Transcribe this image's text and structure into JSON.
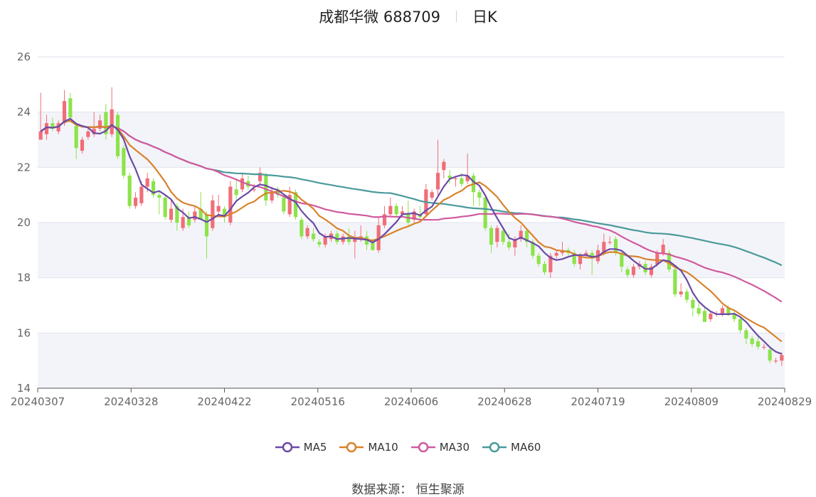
{
  "header": {
    "title": "成都华微 688709",
    "period": "日K"
  },
  "footer": {
    "source": "数据来源：  恒生聚源"
  },
  "chart_data": {
    "type": "candlestick",
    "ylim": [
      14,
      26
    ],
    "yticks": [
      14,
      16,
      18,
      20,
      22,
      24,
      26
    ],
    "xtick_labels": [
      "20240307",
      "20240328",
      "20240422",
      "20240516",
      "20240606",
      "20240628",
      "20240719",
      "20240809",
      "20240829"
    ],
    "colors": {
      "up": "#f06e78",
      "down": "#8ce34a",
      "band": "#f3f4f9",
      "grid": "#dfe3ef",
      "axis": "#666666"
    },
    "legend": [
      "MA5",
      "MA10",
      "MA30",
      "MA60"
    ],
    "series_colors": {
      "MA5": "#6a4aa6",
      "MA10": "#d9822b",
      "MA30": "#d05a9e",
      "MA60": "#4a9a9a"
    },
    "candles": [
      [
        23.0,
        23.3,
        24.7,
        23.0
      ],
      [
        23.2,
        23.6,
        23.9,
        23.0
      ],
      [
        23.6,
        23.4,
        23.8,
        23.3
      ],
      [
        23.3,
        23.6,
        23.7,
        23.2
      ],
      [
        23.6,
        24.4,
        24.8,
        23.5
      ],
      [
        24.5,
        23.8,
        24.7,
        23.7
      ],
      [
        23.5,
        22.7,
        23.6,
        22.3
      ],
      [
        22.6,
        23.0,
        23.1,
        22.5
      ],
      [
        23.1,
        23.3,
        23.4,
        23.0
      ],
      [
        23.2,
        23.4,
        24.0,
        23.1
      ],
      [
        23.4,
        23.7,
        23.9,
        23.3
      ],
      [
        24.0,
        23.2,
        24.3,
        23.0
      ],
      [
        23.2,
        24.1,
        24.9,
        23.1
      ],
      [
        23.9,
        22.4,
        24.0,
        22.3
      ],
      [
        22.7,
        21.7,
        22.8,
        21.6
      ],
      [
        21.7,
        20.6,
        21.8,
        20.5
      ],
      [
        20.6,
        20.9,
        21.1,
        20.5
      ],
      [
        20.7,
        21.3,
        21.5,
        20.6
      ],
      [
        21.3,
        21.6,
        21.8,
        21.1
      ],
      [
        21.5,
        21.0,
        21.6,
        20.9
      ],
      [
        21.0,
        20.9,
        21.1,
        20.3
      ],
      [
        20.9,
        20.2,
        21.0,
        20.1
      ],
      [
        20.1,
        20.5,
        20.8,
        20.0
      ],
      [
        20.6,
        20.0,
        20.7,
        19.7
      ],
      [
        19.8,
        20.2,
        20.5,
        19.7
      ],
      [
        20.2,
        19.9,
        20.4,
        19.8
      ],
      [
        20.1,
        20.4,
        20.6,
        20.0
      ],
      [
        20.5,
        20.1,
        21.1,
        20.1
      ],
      [
        20.3,
        19.5,
        20.4,
        18.7
      ],
      [
        19.8,
        20.8,
        21.0,
        19.7
      ],
      [
        20.4,
        20.6,
        21.0,
        20.2
      ],
      [
        20.5,
        20.2,
        20.6,
        20.0
      ],
      [
        20.0,
        21.3,
        21.5,
        19.9
      ],
      [
        21.2,
        21.0,
        21.6,
        20.8
      ],
      [
        21.2,
        21.6,
        21.8,
        21.1
      ],
      [
        21.5,
        21.3,
        21.7,
        21.2
      ],
      [
        21.2,
        21.2,
        21.4,
        21.1
      ],
      [
        21.5,
        21.8,
        22.0,
        21.4
      ],
      [
        21.7,
        20.8,
        21.8,
        20.6
      ],
      [
        20.8,
        21.1,
        21.3,
        20.7
      ],
      [
        21.2,
        21.0,
        21.3,
        20.9
      ],
      [
        20.9,
        20.4,
        21.0,
        20.3
      ],
      [
        20.3,
        21.0,
        21.3,
        20.2
      ],
      [
        21.1,
        20.2,
        21.2,
        20.1
      ],
      [
        20.1,
        19.5,
        20.2,
        19.4
      ],
      [
        19.5,
        19.8,
        19.9,
        19.4
      ],
      [
        19.6,
        19.4,
        19.8,
        19.3
      ],
      [
        19.3,
        19.2,
        19.4,
        19.1
      ],
      [
        19.2,
        19.5,
        19.6,
        19.1
      ],
      [
        19.4,
        19.6,
        19.7,
        19.3
      ],
      [
        19.6,
        19.3,
        19.7,
        19.2
      ],
      [
        19.3,
        19.5,
        19.6,
        19.2
      ],
      [
        19.5,
        19.3,
        19.8,
        19.2
      ],
      [
        19.3,
        19.4,
        19.7,
        18.7
      ],
      [
        19.4,
        19.5,
        19.9,
        19.3
      ],
      [
        19.5,
        19.2,
        19.7,
        19.0
      ],
      [
        19.3,
        19.0,
        19.4,
        19.0
      ],
      [
        19.0,
        19.9,
        20.2,
        18.9
      ],
      [
        19.9,
        20.3,
        20.6,
        19.8
      ],
      [
        20.3,
        20.6,
        20.9,
        20.2
      ],
      [
        20.6,
        20.3,
        20.7,
        20.2
      ],
      [
        20.3,
        20.4,
        20.6,
        20.2
      ],
      [
        20.3,
        20.0,
        20.8,
        19.9
      ],
      [
        20.1,
        20.4,
        20.5,
        20.0
      ],
      [
        20.3,
        20.2,
        20.6,
        20.1
      ],
      [
        20.3,
        21.2,
        21.4,
        20.2
      ],
      [
        20.9,
        21.1,
        21.2,
        20.8
      ],
      [
        21.2,
        21.8,
        23.0,
        20.9
      ],
      [
        21.9,
        22.2,
        22.3,
        21.6
      ],
      [
        21.7,
        21.6,
        21.9,
        21.4
      ],
      [
        21.6,
        21.6,
        21.7,
        21.3
      ],
      [
        21.6,
        21.4,
        21.8,
        21.3
      ],
      [
        21.5,
        21.7,
        22.5,
        21.4
      ],
      [
        21.7,
        21.1,
        21.8,
        20.6
      ],
      [
        21.1,
        20.9,
        21.2,
        20.6
      ],
      [
        20.9,
        19.8,
        21.0,
        19.7
      ],
      [
        19.8,
        19.2,
        19.9,
        18.9
      ],
      [
        19.3,
        19.8,
        19.9,
        19.1
      ],
      [
        19.7,
        19.3,
        19.8,
        19.2
      ],
      [
        19.3,
        19.1,
        19.6,
        19.0
      ],
      [
        19.1,
        19.4,
        19.5,
        18.8
      ],
      [
        19.4,
        19.7,
        19.9,
        19.3
      ],
      [
        19.7,
        19.3,
        19.8,
        19.1
      ],
      [
        19.3,
        18.8,
        19.4,
        18.7
      ],
      [
        18.8,
        18.5,
        18.9,
        18.4
      ],
      [
        18.5,
        18.2,
        18.6,
        18.1
      ],
      [
        18.2,
        18.8,
        18.9,
        18.0
      ],
      [
        18.8,
        18.9,
        19.0,
        18.7
      ],
      [
        18.9,
        19.0,
        19.3,
        18.8
      ],
      [
        19.0,
        18.9,
        19.1,
        18.8
      ],
      [
        18.9,
        18.5,
        19.0,
        18.4
      ],
      [
        18.5,
        18.8,
        18.9,
        18.3
      ],
      [
        18.8,
        18.9,
        19.0,
        18.7
      ],
      [
        18.9,
        18.7,
        19.0,
        18.1
      ],
      [
        18.6,
        19.0,
        19.2,
        18.5
      ],
      [
        18.9,
        19.3,
        19.6,
        18.8
      ],
      [
        19.3,
        19.3,
        19.5,
        19.2
      ],
      [
        19.4,
        18.9,
        19.5,
        18.8
      ],
      [
        18.9,
        18.4,
        19.0,
        18.2
      ],
      [
        18.3,
        18.1,
        18.4,
        18.0
      ],
      [
        18.1,
        18.4,
        18.5,
        18.0
      ],
      [
        18.4,
        18.5,
        18.6,
        18.3
      ],
      [
        18.5,
        18.2,
        18.6,
        18.1
      ],
      [
        18.1,
        18.4,
        18.5,
        18.0
      ],
      [
        18.5,
        18.9,
        19.0,
        18.4
      ],
      [
        18.9,
        19.2,
        19.4,
        18.8
      ],
      [
        18.9,
        18.3,
        19.0,
        18.2
      ],
      [
        18.3,
        17.4,
        18.4,
        17.3
      ],
      [
        17.4,
        17.5,
        17.8,
        17.3
      ],
      [
        17.5,
        17.2,
        17.6,
        17.1
      ],
      [
        17.2,
        16.9,
        17.3,
        16.6
      ],
      [
        16.9,
        16.7,
        17.1,
        16.6
      ],
      [
        16.8,
        16.4,
        16.9,
        16.4
      ],
      [
        16.5,
        16.7,
        16.8,
        16.4
      ],
      [
        16.7,
        16.7,
        16.8,
        16.6
      ],
      [
        16.7,
        16.9,
        17.0,
        16.6
      ],
      [
        16.9,
        16.7,
        17.0,
        16.6
      ],
      [
        16.7,
        16.5,
        16.8,
        16.4
      ],
      [
        16.5,
        16.1,
        16.6,
        16.0
      ],
      [
        16.1,
        15.8,
        16.2,
        15.6
      ],
      [
        15.8,
        15.6,
        15.9,
        15.5
      ],
      [
        15.7,
        15.5,
        15.9,
        15.4
      ],
      [
        15.5,
        15.5,
        15.6,
        15.4
      ],
      [
        15.4,
        15.0,
        15.5,
        14.9
      ],
      [
        15.0,
        15.0,
        15.1,
        14.9
      ],
      [
        15.0,
        15.2,
        15.3,
        14.8
      ]
    ]
  }
}
